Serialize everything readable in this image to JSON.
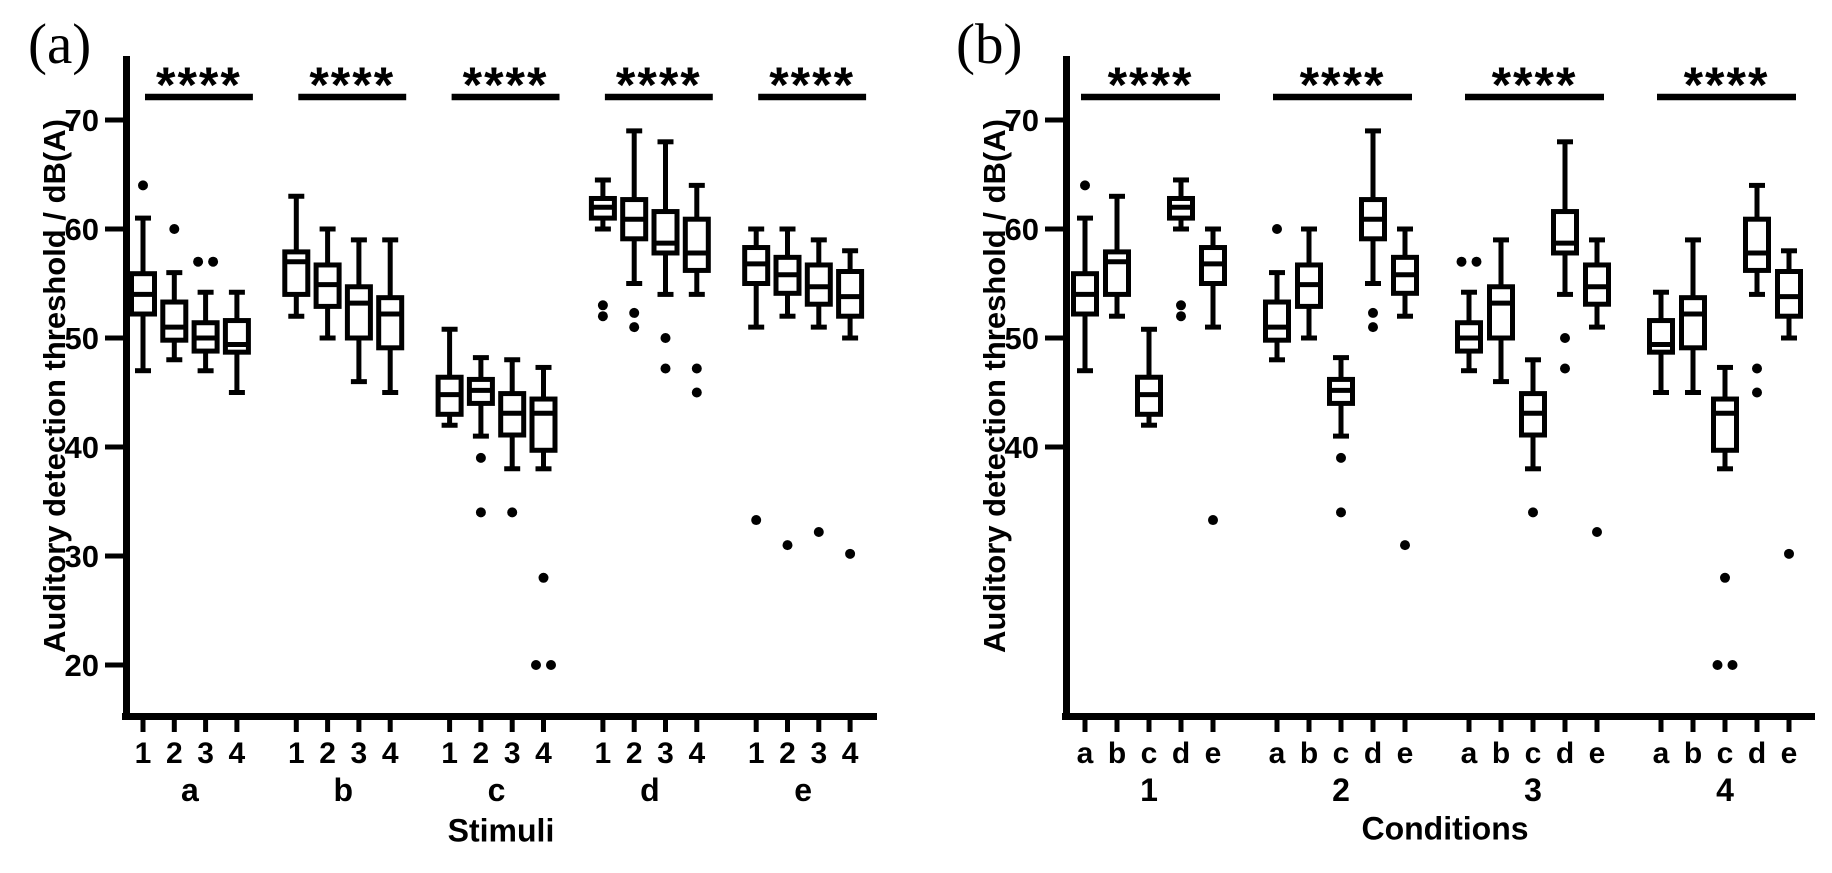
{
  "colors": {
    "ink": "#000000",
    "background": "#ffffff"
  },
  "chart_data": [
    {
      "type": "boxplot",
      "panel_label": "(a)",
      "ylabel": "Auditory detection threshold / dB(A)",
      "xlabel": "Stimuli",
      "ylim": [
        15.5,
        75.5
      ],
      "yticks": [
        20,
        30,
        40,
        50,
        60,
        70
      ],
      "grid": false,
      "legend": false,
      "groups": [
        {
          "label": "a",
          "significance": "****",
          "boxes": [
            {
              "tick": "1",
              "whislo": 47,
              "q1": 52.2,
              "med": 54,
              "q3": 55.9,
              "whishi": 61,
              "fliers": [
                64
              ]
            },
            {
              "tick": "2",
              "whislo": 48,
              "q1": 49.8,
              "med": 51,
              "q3": 53.3,
              "whishi": 56,
              "fliers": [
                60
              ]
            },
            {
              "tick": "3",
              "whislo": 47,
              "q1": 48.8,
              "med": 50,
              "q3": 51.4,
              "whishi": 54.2,
              "fliers": [
                57,
                57
              ]
            },
            {
              "tick": "4",
              "whislo": 45,
              "q1": 48.7,
              "med": 49.4,
              "q3": 51.6,
              "whishi": 54.2,
              "fliers": []
            }
          ]
        },
        {
          "label": "b",
          "significance": "****",
          "boxes": [
            {
              "tick": "1",
              "whislo": 52,
              "q1": 54,
              "med": 57,
              "q3": 57.9,
              "whishi": 63,
              "fliers": []
            },
            {
              "tick": "2",
              "whislo": 50,
              "q1": 52.9,
              "med": 54.9,
              "q3": 56.7,
              "whishi": 60,
              "fliers": []
            },
            {
              "tick": "3",
              "whislo": 46,
              "q1": 50,
              "med": 53.2,
              "q3": 54.7,
              "whishi": 59,
              "fliers": []
            },
            {
              "tick": "4",
              "whislo": 45,
              "q1": 49.1,
              "med": 52.2,
              "q3": 53.7,
              "whishi": 59,
              "fliers": []
            }
          ]
        },
        {
          "label": "c",
          "significance": "****",
          "boxes": [
            {
              "tick": "1",
              "whislo": 42,
              "q1": 43,
              "med": 44.8,
              "q3": 46.4,
              "whishi": 50.8,
              "fliers": []
            },
            {
              "tick": "2",
              "whislo": 41,
              "q1": 44,
              "med": 45.2,
              "q3": 46.2,
              "whishi": 48.2,
              "fliers": [
                39,
                34
              ]
            },
            {
              "tick": "3",
              "whislo": 38,
              "q1": 41.1,
              "med": 43.1,
              "q3": 44.9,
              "whishi": 48,
              "fliers": [
                34
              ]
            },
            {
              "tick": "4",
              "whislo": 38,
              "q1": 39.7,
              "med": 43.1,
              "q3": 44.4,
              "whishi": 47.3,
              "fliers": [
                28,
                20,
                20
              ]
            }
          ]
        },
        {
          "label": "d",
          "significance": "****",
          "boxes": [
            {
              "tick": "1",
              "whislo": 60,
              "q1": 61,
              "med": 62,
              "q3": 62.8,
              "whishi": 64.5,
              "fliers": [
                53,
                52
              ]
            },
            {
              "tick": "2",
              "whislo": 55,
              "q1": 59.1,
              "med": 60.9,
              "q3": 62.7,
              "whishi": 69,
              "fliers": [
                52.3,
                51
              ]
            },
            {
              "tick": "3",
              "whislo": 54,
              "q1": 57.8,
              "med": 58.7,
              "q3": 61.6,
              "whishi": 68,
              "fliers": [
                50,
                47.2
              ]
            },
            {
              "tick": "4",
              "whislo": 54,
              "q1": 56.2,
              "med": 57.8,
              "q3": 60.9,
              "whishi": 64,
              "fliers": [
                47.2,
                45
              ]
            }
          ]
        },
        {
          "label": "e",
          "significance": "****",
          "boxes": [
            {
              "tick": "1",
              "whislo": 51,
              "q1": 55,
              "med": 56.8,
              "q3": 58.3,
              "whishi": 60,
              "fliers": [
                33.3
              ]
            },
            {
              "tick": "2",
              "whislo": 52,
              "q1": 54.1,
              "med": 55.8,
              "q3": 57.4,
              "whishi": 60,
              "fliers": [
                31
              ]
            },
            {
              "tick": "3",
              "whislo": 51,
              "q1": 53.1,
              "med": 54.7,
              "q3": 56.7,
              "whishi": 59,
              "fliers": [
                32.2
              ]
            },
            {
              "tick": "4",
              "whislo": 50,
              "q1": 52,
              "med": 53.8,
              "q3": 56.1,
              "whishi": 58,
              "fliers": [
                30.2
              ]
            }
          ]
        }
      ]
    },
    {
      "type": "boxplot",
      "panel_label": "(b)",
      "ylabel": "Auditory detection threshold / dB(A)",
      "xlabel": "Conditions",
      "ylim": [
        15.5,
        75.5
      ],
      "yticks": [
        40,
        50,
        60,
        70
      ],
      "grid": false,
      "legend": false,
      "groups": [
        {
          "label": "1",
          "significance": "****",
          "boxes": [
            {
              "tick": "a",
              "whislo": 47,
              "q1": 52.2,
              "med": 54,
              "q3": 55.9,
              "whishi": 61,
              "fliers": [
                64
              ]
            },
            {
              "tick": "b",
              "whislo": 52,
              "q1": 54,
              "med": 57,
              "q3": 57.9,
              "whishi": 63,
              "fliers": []
            },
            {
              "tick": "c",
              "whislo": 42,
              "q1": 43,
              "med": 44.8,
              "q3": 46.4,
              "whishi": 50.8,
              "fliers": []
            },
            {
              "tick": "d",
              "whislo": 60,
              "q1": 61,
              "med": 62,
              "q3": 62.8,
              "whishi": 64.5,
              "fliers": [
                53,
                52
              ]
            },
            {
              "tick": "e",
              "whislo": 51,
              "q1": 55,
              "med": 56.8,
              "q3": 58.3,
              "whishi": 60,
              "fliers": [
                33.3
              ]
            }
          ]
        },
        {
          "label": "2",
          "significance": "****",
          "boxes": [
            {
              "tick": "a",
              "whislo": 48,
              "q1": 49.8,
              "med": 51,
              "q3": 53.3,
              "whishi": 56,
              "fliers": [
                60
              ]
            },
            {
              "tick": "b",
              "whislo": 50,
              "q1": 52.9,
              "med": 54.9,
              "q3": 56.7,
              "whishi": 60,
              "fliers": []
            },
            {
              "tick": "c",
              "whislo": 41,
              "q1": 44,
              "med": 45.2,
              "q3": 46.2,
              "whishi": 48.2,
              "fliers": [
                39,
                34
              ]
            },
            {
              "tick": "d",
              "whislo": 55,
              "q1": 59.1,
              "med": 60.9,
              "q3": 62.7,
              "whishi": 69,
              "fliers": [
                52.3,
                51
              ]
            },
            {
              "tick": "e",
              "whislo": 52,
              "q1": 54.1,
              "med": 55.8,
              "q3": 57.4,
              "whishi": 60,
              "fliers": [
                31
              ]
            }
          ]
        },
        {
          "label": "3",
          "significance": "****",
          "boxes": [
            {
              "tick": "a",
              "whislo": 47,
              "q1": 48.8,
              "med": 50,
              "q3": 51.4,
              "whishi": 54.2,
              "fliers": [
                57,
                57
              ]
            },
            {
              "tick": "b",
              "whislo": 46,
              "q1": 50,
              "med": 53.2,
              "q3": 54.7,
              "whishi": 59,
              "fliers": []
            },
            {
              "tick": "c",
              "whislo": 38,
              "q1": 41.1,
              "med": 43.1,
              "q3": 44.9,
              "whishi": 48,
              "fliers": [
                34
              ]
            },
            {
              "tick": "d",
              "whislo": 54,
              "q1": 57.8,
              "med": 58.7,
              "q3": 61.6,
              "whishi": 68,
              "fliers": [
                50,
                47.2
              ]
            },
            {
              "tick": "e",
              "whislo": 51,
              "q1": 53.1,
              "med": 54.7,
              "q3": 56.7,
              "whishi": 59,
              "fliers": [
                32.2
              ]
            }
          ]
        },
        {
          "label": "4",
          "significance": "****",
          "boxes": [
            {
              "tick": "a",
              "whislo": 45,
              "q1": 48.7,
              "med": 49.4,
              "q3": 51.6,
              "whishi": 54.2,
              "fliers": []
            },
            {
              "tick": "b",
              "whislo": 45,
              "q1": 49.1,
              "med": 52.2,
              "q3": 53.7,
              "whishi": 59,
              "fliers": []
            },
            {
              "tick": "c",
              "whislo": 38,
              "q1": 39.7,
              "med": 43.1,
              "q3": 44.4,
              "whishi": 47.3,
              "fliers": [
                28,
                20,
                20
              ]
            },
            {
              "tick": "d",
              "whislo": 54,
              "q1": 56.2,
              "med": 57.8,
              "q3": 60.9,
              "whishi": 64,
              "fliers": [
                47.2,
                45
              ]
            },
            {
              "tick": "e",
              "whislo": 50,
              "q1": 52,
              "med": 53.8,
              "q3": 56.1,
              "whishi": 58,
              "fliers": [
                30.2
              ]
            }
          ]
        }
      ]
    }
  ]
}
